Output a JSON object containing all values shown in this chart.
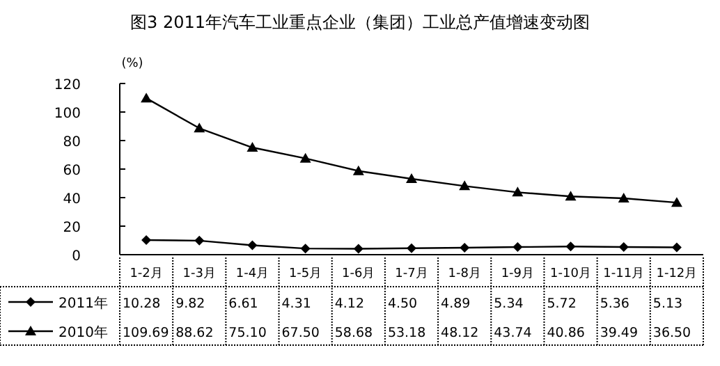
{
  "chart_data": {
    "type": "line",
    "title": "图3 2011年汽车工业重点企业（集团）工业总产值增速变动图",
    "ylabel": "(%)",
    "categories": [
      "1-2月",
      "1-3月",
      "1-4月",
      "1-5月",
      "1-6月",
      "1-7月",
      "1-8月",
      "1-9月",
      "1-10月",
      "1-11月",
      "1-12月"
    ],
    "ylim": [
      0,
      120
    ],
    "yticks": [
      0,
      20,
      40,
      60,
      80,
      100,
      120
    ],
    "grid": false,
    "legend": "bottom",
    "series": [
      {
        "name": "2011年",
        "color": "#000000",
        "marker": "diamond",
        "values": [
          10.28,
          9.82,
          6.61,
          4.31,
          4.12,
          4.5,
          4.89,
          5.34,
          5.72,
          5.36,
          5.13
        ],
        "value_labels": [
          "10.28",
          "9.82",
          "6.61",
          "4.31",
          "4.12",
          "4.50",
          "4.89",
          "5.34",
          "5.72",
          "5.36",
          "5.13"
        ]
      },
      {
        "name": "2010年",
        "color": "#000000",
        "marker": "triangle",
        "values": [
          109.69,
          88.62,
          75.1,
          67.5,
          58.68,
          53.18,
          48.12,
          43.74,
          40.86,
          39.49,
          36.5
        ],
        "value_labels": [
          "109.69",
          "88.62",
          "75.10",
          "67.50",
          "58.68",
          "53.18",
          "48.12",
          "43.74",
          "40.86",
          "39.49",
          "36.50"
        ]
      }
    ]
  }
}
